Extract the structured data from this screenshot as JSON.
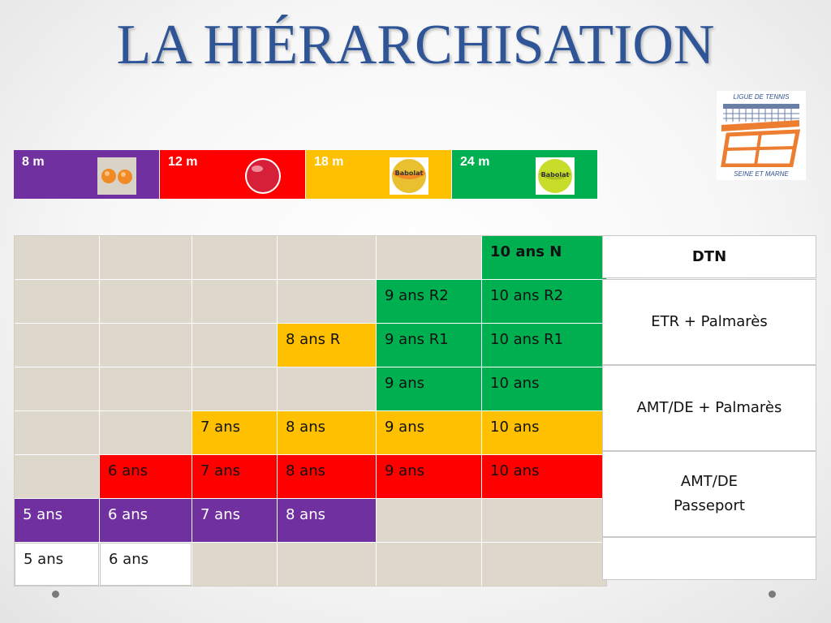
{
  "title": "LA HIÉRARCHISATION",
  "logo": {
    "line1": "LIGUE DE TENNIS",
    "line2": "SEINE ET MARNE"
  },
  "courts": [
    {
      "label": "8 m",
      "color": "#7030a0",
      "ball": "orange-foam-balls-icon"
    },
    {
      "label": "12 m",
      "color": "#ff0000",
      "ball": "red-ball-icon"
    },
    {
      "label": "18 m",
      "color": "#ffc000",
      "ball": "orange-babolat-ball-icon"
    },
    {
      "label": "24 m",
      "color": "#00b050",
      "ball": "green-babolat-ball-icon"
    }
  ],
  "colors": {
    "green": "#00b050",
    "yellow": "#ffc000",
    "red": "#ff0000",
    "purple": "#7030a0",
    "empty": "#ddd7cc"
  },
  "grid": [
    [
      "",
      "",
      "",
      "",
      "",
      "10 ans N"
    ],
    [
      "",
      "",
      "",
      "",
      "9 ans R2",
      "10 ans R2"
    ],
    [
      "",
      "",
      "",
      "8 ans R",
      "9 ans R1",
      "10 ans R1"
    ],
    [
      "",
      "",
      "",
      "",
      "9 ans",
      "10 ans"
    ],
    [
      "",
      "",
      "7 ans",
      "8 ans",
      "9 ans",
      "10 ans"
    ],
    [
      "",
      "6 ans",
      "7 ans",
      "8 ans",
      "9 ans",
      "10 ans"
    ],
    [
      "5 ans",
      "6 ans",
      "7 ans",
      "8 ans",
      "",
      ""
    ],
    [
      "5 ans",
      "6 ans",
      "",
      "",
      "",
      ""
    ]
  ],
  "side_labels": {
    "dtn": "DTN",
    "etr": "ETR + Palmarès",
    "amt_palmares": "AMT/DE + Palmarès",
    "amt_line1": "AMT/DE",
    "amt_line2": "Passeport",
    "empty": ""
  }
}
